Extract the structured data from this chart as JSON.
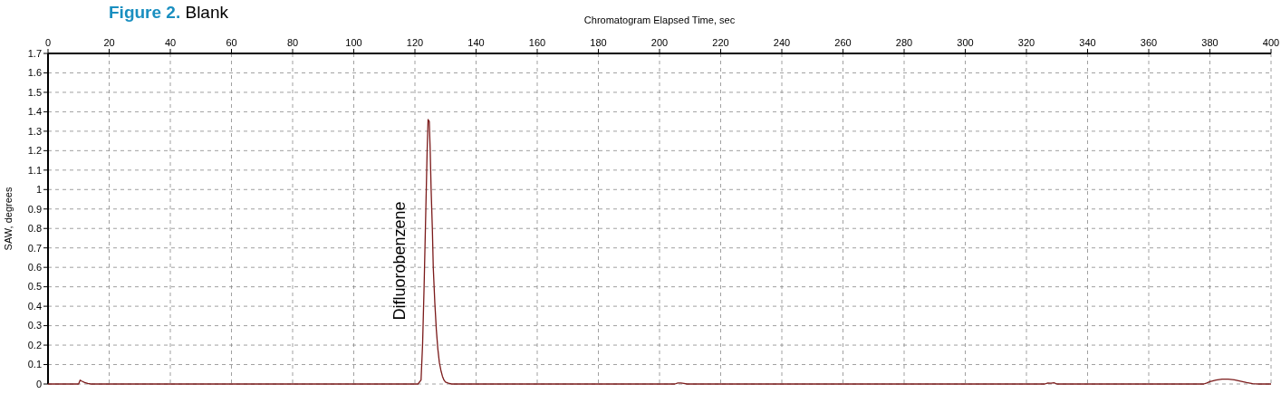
{
  "chart_data": {
    "type": "line",
    "title": "Figure 2. Blank",
    "xlabel": "Chromatogram Elapsed Time, sec",
    "ylabel": "SAW, degrees",
    "xlim": [
      0,
      400
    ],
    "ylim": [
      0,
      1.7
    ],
    "xticks": [
      0,
      20,
      40,
      60,
      80,
      100,
      120,
      140,
      160,
      180,
      200,
      220,
      240,
      260,
      280,
      300,
      320,
      340,
      360,
      380,
      400
    ],
    "yticks": [
      0,
      0.1,
      0.2,
      0.3,
      0.4,
      0.5,
      0.6,
      0.7,
      0.8,
      0.9,
      1,
      1.1,
      1.2,
      1.3,
      1.4,
      1.5,
      1.6,
      1.7
    ],
    "grid": true,
    "marker": "none",
    "line_style": "solid",
    "annotations": [
      "Difluorobenzene"
    ],
    "series": [
      {
        "color": "#7b1a1a",
        "x": [
          0,
          10,
          10.5,
          11,
          12,
          13,
          14,
          20,
          60,
          100,
          118,
          121,
          122,
          122.5,
          123,
          123.5,
          124,
          124.3,
          124.7,
          125,
          125.3,
          125.7,
          126,
          126.5,
          127,
          127.5,
          128,
          128.5,
          129,
          129.5,
          130,
          131,
          132,
          140,
          180,
          205,
          206,
          207,
          208,
          209,
          240,
          300,
          326,
          327,
          328,
          329,
          330,
          378,
          379,
          380,
          382,
          384,
          386,
          388,
          390,
          392,
          394,
          396,
          400
        ],
        "values": [
          0,
          0,
          0.02,
          0.015,
          0.008,
          0.003,
          0,
          0,
          0,
          0,
          0,
          0,
          0.02,
          0.2,
          0.5,
          0.85,
          1.2,
          1.36,
          1.35,
          1.2,
          1.0,
          0.8,
          0.6,
          0.42,
          0.28,
          0.18,
          0.11,
          0.07,
          0.04,
          0.02,
          0.01,
          0.004,
          0,
          0,
          0,
          0,
          0.005,
          0.005,
          0.003,
          0,
          0,
          0,
          0,
          0.005,
          0.004,
          0.006,
          0,
          0,
          0.005,
          0.012,
          0.02,
          0.025,
          0.025,
          0.022,
          0.015,
          0.008,
          0.002,
          0,
          0
        ]
      }
    ]
  }
}
